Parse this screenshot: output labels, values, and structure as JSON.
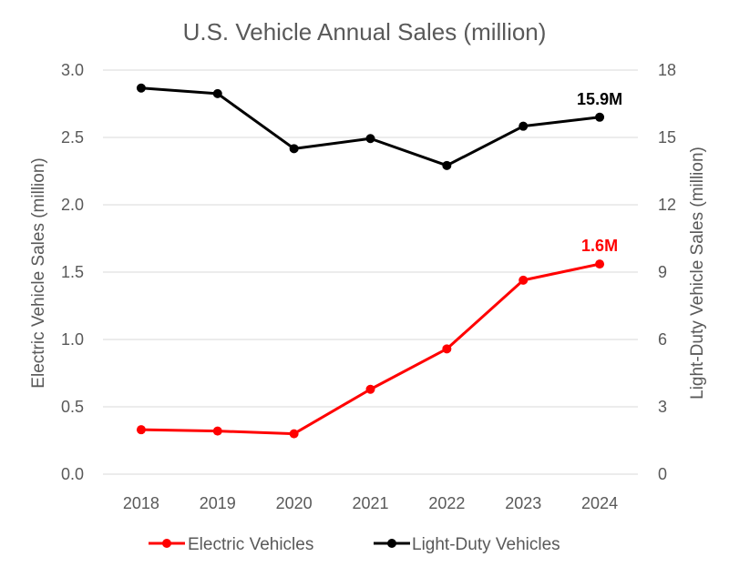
{
  "chart_data": {
    "type": "line",
    "title": "U.S. Vehicle Annual Sales (million)",
    "categories": [
      "2018",
      "2019",
      "2020",
      "2021",
      "2022",
      "2023",
      "2024"
    ],
    "ylabel_left": "Electric Vehicle Sales (million)",
    "ylabel_right": "Light-Duty Vehicle Sales (million)",
    "ylim_left": [
      0,
      3.0
    ],
    "ylim_right": [
      0,
      18
    ],
    "yticks_left": [
      "0.0",
      "0.5",
      "1.0",
      "1.5",
      "2.0",
      "2.5",
      "3.0"
    ],
    "yticks_right": [
      "0",
      "3",
      "6",
      "9",
      "12",
      "15",
      "18"
    ],
    "grid": true,
    "legend_position": "bottom",
    "series": [
      {
        "name": "Electric Vehicles",
        "axis": "left",
        "color": "#ff0000",
        "values": [
          0.33,
          0.32,
          0.3,
          0.63,
          0.93,
          1.44,
          1.56
        ],
        "end_label": "1.6M"
      },
      {
        "name": "Light-Duty Vehicles",
        "axis": "right",
        "color": "#000000",
        "values": [
          17.2,
          16.95,
          14.5,
          14.95,
          13.75,
          15.5,
          15.9
        ],
        "end_label": "15.9M"
      }
    ]
  }
}
